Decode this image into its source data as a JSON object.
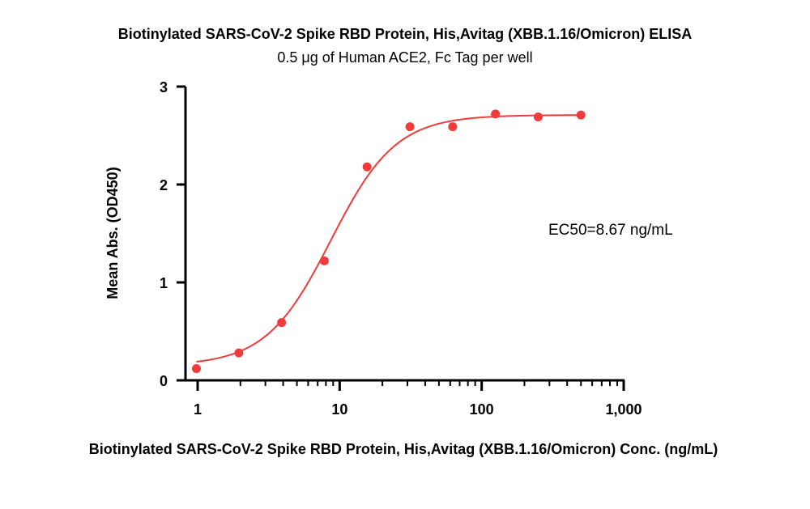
{
  "chart_data": {
    "type": "scatter",
    "title": "Biotinylated SARS-CoV-2 Spike RBD Protein, His,Avitag (XBB.1.16/Omicron) ELISA",
    "subtitle": "0.5 μg of Human ACE2, Fc Tag per well",
    "xlabel": "Biotinylated SARS-CoV-2 Spike RBD Protein, His,Avitag (XBB.1.16/Omicron) Conc. (ng/mL)",
    "ylabel": "Mean Abs. (OD450)",
    "x_scale": "log",
    "xlim": [
      0.9,
      1000
    ],
    "ylim": [
      0,
      3
    ],
    "x_ticks": [
      1,
      10,
      100,
      1000
    ],
    "x_tick_labels": [
      "1",
      "10",
      "100",
      "1,000"
    ],
    "y_ticks": [
      0,
      1,
      2,
      3
    ],
    "y_tick_labels": [
      "0",
      "1",
      "2",
      "3"
    ],
    "grid": false,
    "series": [
      {
        "color": "#ef3b3b",
        "x": [
          0.98,
          1.95,
          3.9,
          7.8,
          15.6,
          31.25,
          62.5,
          125,
          250,
          500
        ],
        "y": [
          0.12,
          0.28,
          0.59,
          1.22,
          2.18,
          2.59,
          2.59,
          2.72,
          2.69,
          2.71
        ]
      }
    ],
    "fit": {
      "model": "4PL",
      "bottom": 0.15,
      "top": 2.71,
      "ec50": 8.67,
      "hill": 1.9,
      "x_range": [
        0.98,
        500
      ]
    },
    "annotations": [
      {
        "text": "EC50=8.67 ng/mL"
      }
    ]
  }
}
